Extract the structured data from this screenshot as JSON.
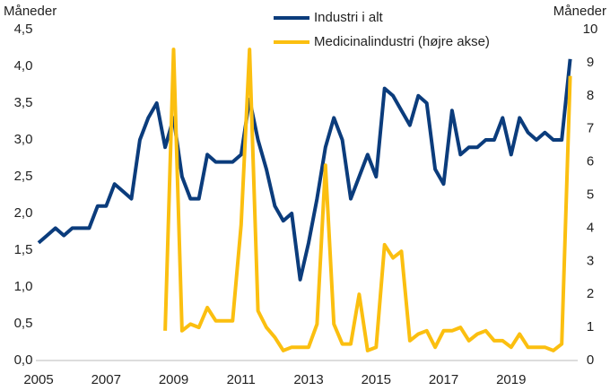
{
  "chart_data": {
    "type": "line",
    "y_label": "Måneder",
    "y2_label": "Måneder",
    "x": [
      2005,
      2005.25,
      2005.5,
      2005.75,
      2006,
      2006.25,
      2006.5,
      2006.75,
      2007,
      2007.25,
      2007.5,
      2007.75,
      2008,
      2008.25,
      2008.5,
      2008.75,
      2009,
      2009.25,
      2009.5,
      2009.75,
      2010,
      2010.25,
      2010.5,
      2010.75,
      2011,
      2011.25,
      2011.5,
      2011.75,
      2012,
      2012.25,
      2012.5,
      2012.75,
      2013,
      2013.25,
      2013.5,
      2013.75,
      2014,
      2014.25,
      2014.5,
      2014.75,
      2015,
      2015.25,
      2015.5,
      2015.75,
      2016,
      2016.25,
      2016.5,
      2016.75,
      2017,
      2017.25,
      2017.5,
      2017.75,
      2018,
      2018.25,
      2018.5,
      2018.75,
      2019,
      2019.25,
      2019.5,
      2019.75,
      2020,
      2020.25,
      2020.5,
      2020.75
    ],
    "series": [
      {
        "name": "Industri i alt",
        "color": "#0b3c7c",
        "axis": "y",
        "values": [
          1.6,
          1.7,
          1.8,
          1.7,
          1.8,
          1.8,
          1.8,
          2.1,
          2.1,
          2.4,
          2.3,
          2.2,
          3.0,
          3.3,
          3.5,
          2.9,
          3.3,
          2.5,
          2.2,
          2.2,
          2.8,
          2.7,
          2.7,
          2.7,
          2.8,
          3.55,
          3.0,
          2.6,
          2.1,
          1.9,
          2.0,
          1.1,
          1.6,
          2.2,
          2.9,
          3.3,
          3.0,
          2.2,
          2.5,
          2.8,
          2.5,
          3.7,
          3.6,
          3.4,
          3.2,
          3.6,
          3.5,
          2.6,
          2.4,
          3.4,
          2.8,
          2.9,
          2.9,
          3.0,
          3.0,
          3.3,
          2.8,
          3.3,
          3.1,
          3.0,
          3.1,
          3.0,
          3.0,
          4.1
        ]
      },
      {
        "name": "Medicinalindustri (højre akse)",
        "color": "#fbbf10",
        "axis": "y2",
        "values": [
          null,
          null,
          null,
          null,
          null,
          null,
          null,
          null,
          null,
          null,
          null,
          null,
          null,
          null,
          null,
          0.9,
          9.4,
          0.9,
          1.1,
          1.0,
          1.6,
          1.2,
          1.2,
          1.2,
          4.1,
          9.4,
          1.5,
          1.0,
          0.7,
          0.3,
          0.4,
          0.4,
          0.4,
          1.1,
          5.9,
          1.1,
          0.5,
          0.5,
          2.0,
          0.3,
          0.4,
          3.5,
          3.1,
          3.3,
          0.6,
          0.8,
          0.9,
          0.4,
          0.9,
          0.9,
          1.0,
          0.6,
          0.8,
          0.9,
          0.6,
          0.6,
          0.4,
          0.8,
          0.4,
          0.4,
          0.4,
          0.3,
          0.5,
          8.6
        ]
      }
    ],
    "xlim": [
      2005,
      2021
    ],
    "xticks": [
      2005,
      2007,
      2009,
      2011,
      2013,
      2015,
      2017,
      2019
    ],
    "ylim": [
      0,
      4.5
    ],
    "yticks": [
      {
        "value": 0,
        "label": "0,0"
      },
      {
        "value": 0.5,
        "label": "0,5"
      },
      {
        "value": 1,
        "label": "1,0"
      },
      {
        "value": 1.5,
        "label": "1,5"
      },
      {
        "value": 2,
        "label": "2,0"
      },
      {
        "value": 2.5,
        "label": "2,5"
      },
      {
        "value": 3,
        "label": "3,0"
      },
      {
        "value": 3.5,
        "label": "3,5"
      },
      {
        "value": 4,
        "label": "4,0"
      },
      {
        "value": 4.5,
        "label": "4,5"
      }
    ],
    "y2lim": [
      0,
      10
    ],
    "y2ticks": [
      0,
      1,
      2,
      3,
      4,
      5,
      6,
      7,
      8,
      9,
      10
    ],
    "grid": false,
    "legend": "top"
  }
}
